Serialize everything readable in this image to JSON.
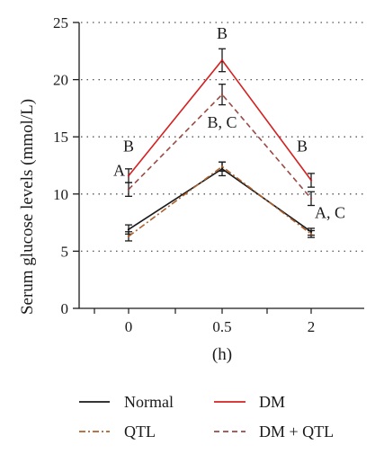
{
  "chart_data": {
    "type": "line",
    "xlabel": "(h)",
    "ylabel": "Serum glucose levels (mmol/L)",
    "categories": [
      "0",
      "0.5",
      "2"
    ],
    "ylim": [
      0,
      25
    ],
    "yticks": [
      "0",
      "5",
      "10",
      "15",
      "20",
      "25"
    ],
    "grid": "horizontal dotted",
    "legend_position": "bottom",
    "series": [
      {
        "name": "Normal",
        "values": [
          6.9,
          12.2,
          6.7
        ],
        "errors": [
          0.4,
          0.6,
          0.3
        ],
        "color": "#1a1a1a",
        "style": "solid"
      },
      {
        "name": "DM",
        "values": [
          11.6,
          21.7,
          11.2
        ],
        "errors": [
          0.6,
          1.0,
          0.6
        ],
        "color": "#d62020",
        "style": "solid"
      },
      {
        "name": "QTL",
        "values": [
          6.3,
          12.4,
          6.5
        ],
        "errors": [
          0.4,
          0.4,
          0.3
        ],
        "color": "#b0602a",
        "style": "dashdot"
      },
      {
        "name": "DM + QTL",
        "values": [
          10.4,
          18.7,
          9.6
        ],
        "errors": [
          0.6,
          0.9,
          0.6
        ],
        "color": "#9a4a44",
        "style": "dashed"
      }
    ],
    "annotations": [
      {
        "text": "B",
        "x": "0",
        "y": 13.7,
        "anchor": "middle"
      },
      {
        "text": "A",
        "x": "0",
        "y": 11.6,
        "anchor": "end"
      },
      {
        "text": "B",
        "x": "0.5",
        "y": 23.6,
        "anchor": "middle"
      },
      {
        "text": "B, C",
        "x": "0.5",
        "y": 15.8,
        "anchor": "middle"
      },
      {
        "text": "B",
        "x": "2",
        "y": 13.7,
        "anchor": "end"
      },
      {
        "text": "A, C",
        "x": "2",
        "y": 7.9,
        "anchor": "start"
      }
    ]
  }
}
